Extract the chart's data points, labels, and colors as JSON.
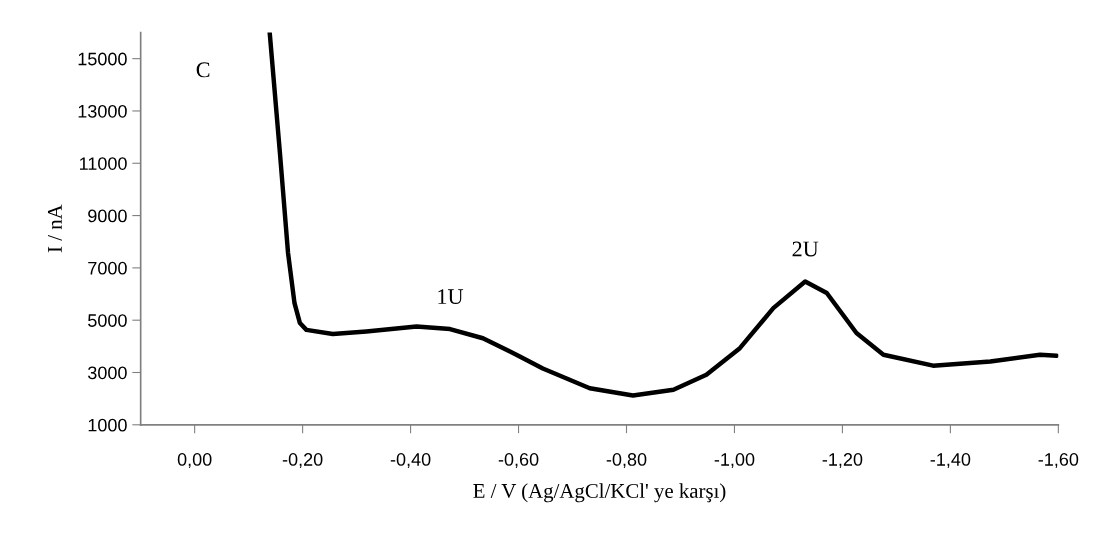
{
  "chart_data": {
    "type": "line",
    "xlabel": "E / V (Ag/AgCl/KCl' ye karşı)",
    "ylabel": "I / nA",
    "x": [
      -0.139,
      -0.158,
      -0.173,
      -0.185,
      -0.195,
      -0.207,
      -0.256,
      -0.318,
      -0.411,
      -0.473,
      -0.534,
      -0.596,
      -0.645,
      -0.732,
      -0.812,
      -0.887,
      -0.948,
      -1.01,
      -1.072,
      -1.131,
      -1.171,
      -1.226,
      -1.276,
      -1.368,
      -1.474,
      -1.566,
      -1.597
    ],
    "series": [
      {
        "color": "#000000",
        "values": [
          16000,
          11390,
          7570,
          5650,
          4890,
          4630,
          4470,
          4570,
          4760,
          4660,
          4310,
          3680,
          3150,
          2400,
          2120,
          2340,
          2910,
          3930,
          5460,
          6480,
          6040,
          4510,
          3680,
          3260,
          3420,
          3680,
          3640
        ]
      }
    ],
    "xlim": [
      0.1,
      -1.6
    ],
    "ylim": [
      1000,
      16000
    ],
    "xticks": [
      {
        "value": 0,
        "label": "0,00"
      },
      {
        "value": -0.2,
        "label": "-0,20"
      },
      {
        "value": -0.4,
        "label": "-0,40"
      },
      {
        "value": -0.6,
        "label": "-0,60"
      },
      {
        "value": -0.8,
        "label": "-0,80"
      },
      {
        "value": -1.0,
        "label": "-1,00"
      },
      {
        "value": -1.2,
        "label": "-1,20"
      },
      {
        "value": -1.4,
        "label": "-1,40"
      },
      {
        "value": -1.6,
        "label": "-1,60"
      }
    ],
    "yticks": [
      1000,
      3000,
      5000,
      7000,
      9000,
      11000,
      13000,
      15000
    ],
    "annotations": [
      "C",
      {
        "text": "1U",
        "x": -0.473,
        "y": 4660
      },
      {
        "text": "2U",
        "x": -1.131,
        "y": 6480
      }
    ],
    "grid": false,
    "marker": "none",
    "line_style": "solid"
  }
}
